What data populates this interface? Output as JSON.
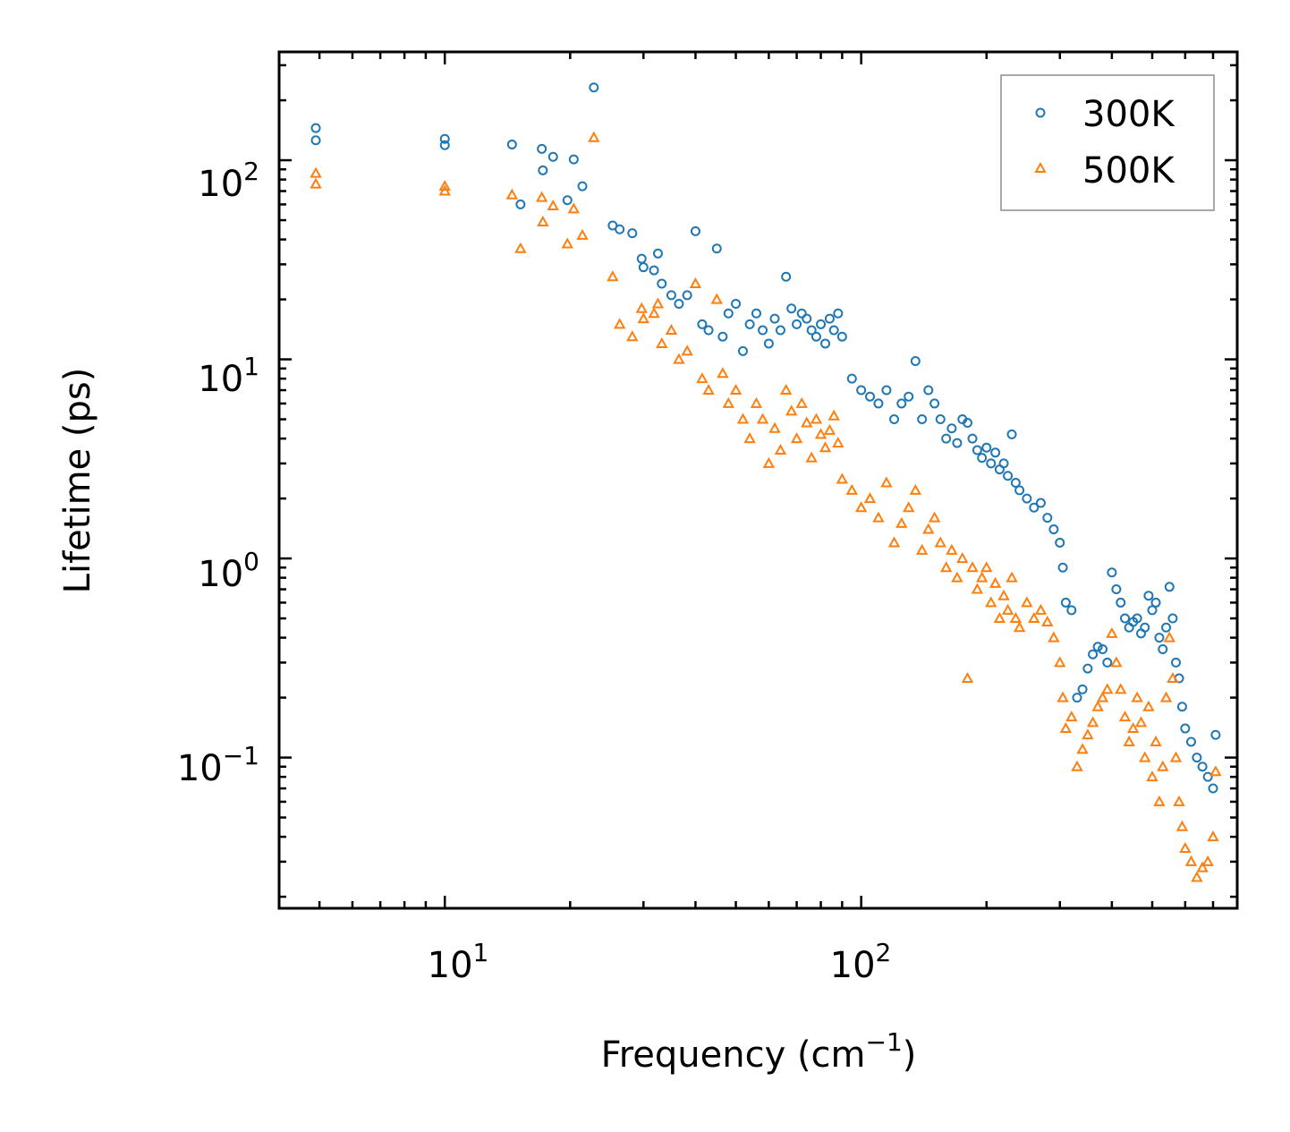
{
  "chart_data": {
    "type": "scatter",
    "xscale": "log",
    "yscale": "log",
    "xlabel_main": "Frequency (cm",
    "xlabel_exp": "−1",
    "xlabel_close": ")",
    "ylabel": "Lifetime (ps)",
    "xlim": [
      4,
      800
    ],
    "ylim": [
      0.0175,
      350
    ],
    "x_ticks": [
      {
        "value": 10,
        "base": "10",
        "exp": "1"
      },
      {
        "value": 100,
        "base": "10",
        "exp": "2"
      }
    ],
    "y_ticks": [
      {
        "value": 0.1,
        "base": "10",
        "exp": "−1"
      },
      {
        "value": 1,
        "base": "10",
        "exp": "0"
      },
      {
        "value": 10,
        "base": "10",
        "exp": "1"
      },
      {
        "value": 100,
        "base": "10",
        "exp": "2"
      }
    ],
    "legend_position": "top-right",
    "series": [
      {
        "name": "300K",
        "marker": "circle",
        "color": "#1f77b4",
        "points": [
          [
            4.9,
            145
          ],
          [
            4.9,
            126
          ],
          [
            10.0,
            128
          ],
          [
            10.0,
            119
          ],
          [
            14.5,
            120
          ],
          [
            15.2,
            60
          ],
          [
            17.1,
            114
          ],
          [
            17.2,
            89
          ],
          [
            18.2,
            104
          ],
          [
            19.7,
            63
          ],
          [
            20.4,
            101
          ],
          [
            21.4,
            74
          ],
          [
            22.8,
            232
          ],
          [
            25.3,
            47
          ],
          [
            26.3,
            45
          ],
          [
            28.2,
            43
          ],
          [
            29.7,
            32
          ],
          [
            30.0,
            29
          ],
          [
            31.8,
            28
          ],
          [
            32.5,
            34
          ],
          [
            33.2,
            24
          ],
          [
            35.0,
            21
          ],
          [
            36.5,
            19
          ],
          [
            38.2,
            21
          ],
          [
            40.0,
            44
          ],
          [
            41.5,
            15
          ],
          [
            43.0,
            14
          ],
          [
            45.0,
            36
          ],
          [
            46.5,
            13
          ],
          [
            48.0,
            17
          ],
          [
            50.0,
            19
          ],
          [
            52.0,
            11
          ],
          [
            54.0,
            15
          ],
          [
            56.0,
            17
          ],
          [
            58.0,
            14
          ],
          [
            60.0,
            12
          ],
          [
            62.0,
            16
          ],
          [
            64.0,
            14
          ],
          [
            66.0,
            26
          ],
          [
            68.0,
            18
          ],
          [
            70.0,
            15
          ],
          [
            72.0,
            17
          ],
          [
            74.0,
            16
          ],
          [
            76.0,
            14
          ],
          [
            78.0,
            13
          ],
          [
            80.0,
            15
          ],
          [
            82.0,
            12
          ],
          [
            84.0,
            16
          ],
          [
            86.0,
            14
          ],
          [
            88.0,
            17
          ],
          [
            90.0,
            13
          ],
          [
            95.0,
            8
          ],
          [
            100.0,
            7
          ],
          [
            105.0,
            6.5
          ],
          [
            110.0,
            6
          ],
          [
            115.0,
            7
          ],
          [
            120.0,
            5
          ],
          [
            125.0,
            6
          ],
          [
            130.0,
            6.5
          ],
          [
            135.0,
            9.8
          ],
          [
            140.0,
            5
          ],
          [
            145.0,
            7
          ],
          [
            150.0,
            6
          ],
          [
            155.0,
            5
          ],
          [
            160.0,
            4
          ],
          [
            165.0,
            4.5
          ],
          [
            170.0,
            3.8
          ],
          [
            175.0,
            5
          ],
          [
            180.0,
            4.8
          ],
          [
            185.0,
            4
          ],
          [
            190.0,
            3.5
          ],
          [
            195.0,
            3.2
          ],
          [
            200.0,
            3.6
          ],
          [
            205.0,
            3
          ],
          [
            210.0,
            3.4
          ],
          [
            215.0,
            2.8
          ],
          [
            220.0,
            3
          ],
          [
            225.0,
            2.6
          ],
          [
            230.0,
            4.2
          ],
          [
            235.0,
            2.4
          ],
          [
            240.0,
            2.2
          ],
          [
            250.0,
            2
          ],
          [
            260.0,
            1.8
          ],
          [
            270.0,
            1.9
          ],
          [
            280.0,
            1.6
          ],
          [
            290.0,
            1.4
          ],
          [
            300.0,
            1.2
          ],
          [
            305.0,
            0.9
          ],
          [
            310.0,
            0.6
          ],
          [
            320.0,
            0.55
          ],
          [
            330.0,
            0.2
          ],
          [
            340.0,
            0.22
          ],
          [
            350.0,
            0.28
          ],
          [
            360.0,
            0.33
          ],
          [
            370.0,
            0.36
          ],
          [
            380.0,
            0.35
          ],
          [
            390.0,
            0.3
          ],
          [
            400.0,
            0.85
          ],
          [
            410.0,
            0.7
          ],
          [
            420.0,
            0.6
          ],
          [
            430.0,
            0.5
          ],
          [
            440.0,
            0.45
          ],
          [
            450.0,
            0.48
          ],
          [
            460.0,
            0.5
          ],
          [
            470.0,
            0.42
          ],
          [
            480.0,
            0.45
          ],
          [
            490.0,
            0.65
          ],
          [
            500.0,
            0.55
          ],
          [
            510.0,
            0.6
          ],
          [
            520.0,
            0.4
          ],
          [
            530.0,
            0.35
          ],
          [
            540.0,
            0.45
          ],
          [
            550.0,
            0.72
          ],
          [
            560.0,
            0.5
          ],
          [
            570.0,
            0.3
          ],
          [
            580.0,
            0.25
          ],
          [
            590.0,
            0.18
          ],
          [
            600.0,
            0.14
          ],
          [
            620.0,
            0.12
          ],
          [
            640.0,
            0.1
          ],
          [
            660.0,
            0.09
          ],
          [
            680.0,
            0.08
          ],
          [
            700.0,
            0.07
          ],
          [
            710.0,
            0.13
          ]
        ]
      },
      {
        "name": "500K",
        "marker": "triangle",
        "color": "#ff7f0e",
        "points": [
          [
            4.9,
            86
          ],
          [
            4.9,
            76
          ],
          [
            10.0,
            74
          ],
          [
            10.0,
            70
          ],
          [
            14.5,
            67
          ],
          [
            15.2,
            36
          ],
          [
            17.1,
            65
          ],
          [
            17.2,
            49
          ],
          [
            18.2,
            59
          ],
          [
            19.7,
            38
          ],
          [
            20.4,
            57
          ],
          [
            21.4,
            42
          ],
          [
            22.8,
            130
          ],
          [
            25.3,
            26
          ],
          [
            26.3,
            15
          ],
          [
            28.2,
            13
          ],
          [
            29.7,
            18
          ],
          [
            30.0,
            16
          ],
          [
            31.8,
            17
          ],
          [
            32.5,
            19
          ],
          [
            33.2,
            12
          ],
          [
            35.0,
            14
          ],
          [
            36.5,
            10
          ],
          [
            38.2,
            11
          ],
          [
            40.0,
            24
          ],
          [
            41.5,
            8
          ],
          [
            43.0,
            7
          ],
          [
            45.0,
            20
          ],
          [
            46.5,
            8.5
          ],
          [
            48.0,
            6
          ],
          [
            50.0,
            7
          ],
          [
            52.0,
            5
          ],
          [
            54.0,
            4
          ],
          [
            56.0,
            6
          ],
          [
            58.0,
            5
          ],
          [
            60.0,
            3
          ],
          [
            62.0,
            4.5
          ],
          [
            64.0,
            3.5
          ],
          [
            66.0,
            7
          ],
          [
            68.0,
            5.5
          ],
          [
            70.0,
            4
          ],
          [
            72.0,
            6
          ],
          [
            74.0,
            4.8
          ],
          [
            76.0,
            3.2
          ],
          [
            78.0,
            5
          ],
          [
            80.0,
            4.2
          ],
          [
            82.0,
            3.6
          ],
          [
            84.0,
            4.4
          ],
          [
            86.0,
            5.2
          ],
          [
            88.0,
            3.8
          ],
          [
            90.0,
            2.5
          ],
          [
            95.0,
            2.2
          ],
          [
            100.0,
            1.8
          ],
          [
            105.0,
            2
          ],
          [
            110.0,
            1.6
          ],
          [
            115.0,
            2.4
          ],
          [
            120.0,
            1.2
          ],
          [
            125.0,
            1.5
          ],
          [
            130.0,
            1.8
          ],
          [
            135.0,
            2.2
          ],
          [
            140.0,
            1.1
          ],
          [
            145.0,
            1.4
          ],
          [
            150.0,
            1.6
          ],
          [
            155.0,
            1.2
          ],
          [
            160.0,
            0.9
          ],
          [
            165.0,
            1.1
          ],
          [
            170.0,
            0.8
          ],
          [
            175.0,
            1
          ],
          [
            180.0,
            0.25
          ],
          [
            185.0,
            0.9
          ],
          [
            190.0,
            0.7
          ],
          [
            195.0,
            0.8
          ],
          [
            200.0,
            0.9
          ],
          [
            205.0,
            0.6
          ],
          [
            210.0,
            0.75
          ],
          [
            215.0,
            0.5
          ],
          [
            220.0,
            0.65
          ],
          [
            225.0,
            0.55
          ],
          [
            230.0,
            0.8
          ],
          [
            235.0,
            0.5
          ],
          [
            240.0,
            0.45
          ],
          [
            250.0,
            0.6
          ],
          [
            260.0,
            0.5
          ],
          [
            270.0,
            0.55
          ],
          [
            280.0,
            0.48
          ],
          [
            290.0,
            0.4
          ],
          [
            300.0,
            0.3
          ],
          [
            305.0,
            0.2
          ],
          [
            310.0,
            0.14
          ],
          [
            320.0,
            0.16
          ],
          [
            330.0,
            0.09
          ],
          [
            340.0,
            0.11
          ],
          [
            350.0,
            0.13
          ],
          [
            360.0,
            0.15
          ],
          [
            370.0,
            0.18
          ],
          [
            380.0,
            0.2
          ],
          [
            390.0,
            0.22
          ],
          [
            400.0,
            0.42
          ],
          [
            410.0,
            0.3
          ],
          [
            420.0,
            0.22
          ],
          [
            430.0,
            0.16
          ],
          [
            440.0,
            0.12
          ],
          [
            450.0,
            0.14
          ],
          [
            460.0,
            0.2
          ],
          [
            470.0,
            0.15
          ],
          [
            480.0,
            0.1
          ],
          [
            490.0,
            0.18
          ],
          [
            500.0,
            0.08
          ],
          [
            510.0,
            0.12
          ],
          [
            520.0,
            0.06
          ],
          [
            530.0,
            0.09
          ],
          [
            540.0,
            0.2
          ],
          [
            550.0,
            0.4
          ],
          [
            560.0,
            0.25
          ],
          [
            570.0,
            0.1
          ],
          [
            580.0,
            0.06
          ],
          [
            590.0,
            0.045
          ],
          [
            600.0,
            0.035
          ],
          [
            620.0,
            0.03
          ],
          [
            640.0,
            0.025
          ],
          [
            660.0,
            0.028
          ],
          [
            680.0,
            0.03
          ],
          [
            700.0,
            0.04
          ],
          [
            710.0,
            0.085
          ]
        ]
      }
    ]
  }
}
